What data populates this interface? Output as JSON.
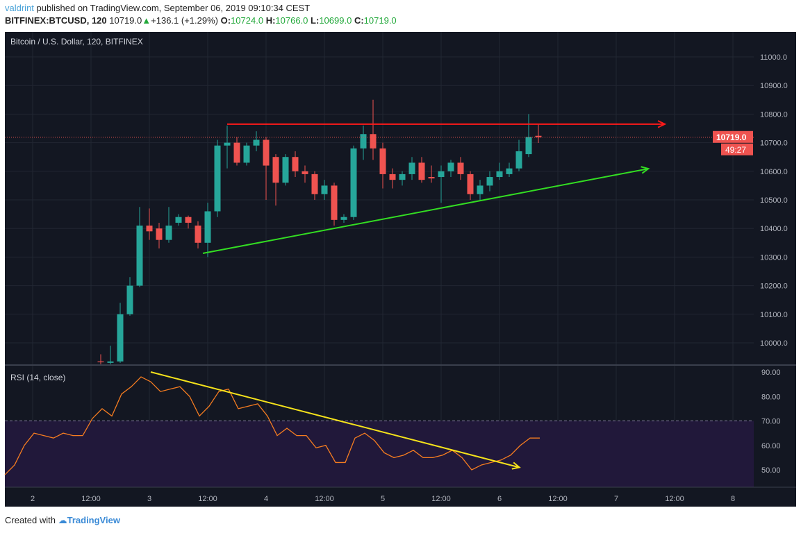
{
  "header": {
    "author": "valdrint",
    "published": "published on TradingView.com, September 06, 2019 09:10:34 CEST",
    "symbol": "BITFINEX:BTCUSD, 120",
    "last": "10719.0",
    "change": "+136.1 (+1.29%)",
    "o_label": "O:",
    "o": "10724.0",
    "h_label": "H:",
    "h": "10766.0",
    "l_label": "L:",
    "l": "10699.0",
    "c_label": "C:",
    "c": "10719.0"
  },
  "footer": {
    "created": "Created with",
    "brand": "TradingView"
  },
  "colors": {
    "bg": "#131722",
    "up": "#26a69a",
    "down": "#ef5350",
    "rsi": "#f57c20",
    "trend_red": "#ff1a1a",
    "trend_green": "#33dd22",
    "trend_yellow": "#f5e21b",
    "band": "#21183a"
  },
  "chart_data": [
    {
      "type": "candlestick",
      "title": "Bitcoin / U.S. Dollar, 120, BITFINEX",
      "ylim": [
        9930,
        11100
      ],
      "yticks": [
        "11000.0",
        "10900.0",
        "10800.0",
        "10700.0",
        "10600.0",
        "10500.0",
        "10400.0",
        "10300.0",
        "10200.0",
        "10100.0",
        "10000.0"
      ],
      "price_label": "10719.0",
      "countdown": "49:27",
      "bars_ohlc": [
        [
          9935,
          9960,
          9925,
          9932
        ],
        [
          9930,
          9990,
          9925,
          9935
        ],
        [
          9935,
          10140,
          9930,
          10100
        ],
        [
          10100,
          10230,
          10095,
          10200
        ],
        [
          10200,
          10475,
          10195,
          10410
        ],
        [
          10410,
          10470,
          10360,
          10390
        ],
        [
          10400,
          10420,
          10330,
          10360
        ],
        [
          10360,
          10475,
          10350,
          10410
        ],
        [
          10420,
          10450,
          10410,
          10440
        ],
        [
          10440,
          10445,
          10400,
          10420
        ],
        [
          10410,
          10425,
          10330,
          10350
        ],
        [
          10350,
          10490,
          10300,
          10460
        ],
        [
          10460,
          10710,
          10440,
          10690
        ],
        [
          10690,
          10760,
          10610,
          10700
        ],
        [
          10700,
          10720,
          10620,
          10630
        ],
        [
          10630,
          10700,
          10620,
          10690
        ],
        [
          10690,
          10740,
          10670,
          10710
        ],
        [
          10710,
          10720,
          10500,
          10620
        ],
        [
          10650,
          10660,
          10480,
          10560
        ],
        [
          10560,
          10660,
          10550,
          10650
        ],
        [
          10650,
          10670,
          10580,
          10600
        ],
        [
          10600,
          10620,
          10560,
          10590
        ],
        [
          10590,
          10600,
          10500,
          10520
        ],
        [
          10520,
          10570,
          10500,
          10550
        ],
        [
          10550,
          10560,
          10410,
          10430
        ],
        [
          10430,
          10450,
          10420,
          10440
        ],
        [
          10440,
          10690,
          10430,
          10680
        ],
        [
          10680,
          10760,
          10640,
          10730
        ],
        [
          10730,
          10850,
          10640,
          10680
        ],
        [
          10680,
          10700,
          10540,
          10590
        ],
        [
          10590,
          10610,
          10540,
          10570
        ],
        [
          10570,
          10600,
          10550,
          10590
        ],
        [
          10590,
          10650,
          10570,
          10630
        ],
        [
          10630,
          10650,
          10560,
          10570
        ],
        [
          10580,
          10620,
          10560,
          10575
        ],
        [
          10580,
          10620,
          10490,
          10600
        ],
        [
          10600,
          10640,
          10580,
          10630
        ],
        [
          10630,
          10650,
          10570,
          10590
        ],
        [
          10590,
          10600,
          10500,
          10520
        ],
        [
          10520,
          10570,
          10500,
          10550
        ],
        [
          10550,
          10600,
          10530,
          10580
        ],
        [
          10580,
          10630,
          10570,
          10600
        ],
        [
          10590,
          10630,
          10580,
          10610
        ],
        [
          10610,
          10710,
          10600,
          10670
        ],
        [
          10660,
          10800,
          10650,
          10720
        ],
        [
          10724,
          10766,
          10699,
          10719
        ]
      ],
      "resistance": {
        "from_bar": 13,
        "to_bar": 58,
        "price": 10765
      },
      "support": {
        "from_bar": 10.5,
        "to_bar": 56.3,
        "from_price": 10313,
        "to_price": 10609
      }
    },
    {
      "type": "line",
      "title": "RSI (14, close)",
      "ylim": [
        43,
        93
      ],
      "yticks": [
        "90.00",
        "80.00",
        "70.00",
        "60.00",
        "50.00"
      ],
      "overbought": 70,
      "values": [
        48,
        52,
        60,
        65,
        64,
        63,
        65,
        64,
        64,
        71,
        75,
        72,
        81,
        84,
        88,
        86,
        82,
        83,
        84,
        80,
        72,
        76,
        82,
        83,
        75,
        76,
        77,
        72,
        64,
        67,
        64,
        64,
        59,
        60,
        53,
        53,
        63,
        65,
        62,
        57,
        55,
        56,
        58,
        55,
        55,
        56,
        58,
        55,
        50,
        52,
        53,
        54,
        56,
        60,
        63,
        63
      ],
      "trend": {
        "from_idx": 15,
        "to_idx": 52.9,
        "from": 90,
        "to": 51
      }
    }
  ],
  "xticks": [
    "2",
    "12:00",
    "3",
    "12:00",
    "4",
    "12:00",
    "5",
    "12:00",
    "6",
    "12:00",
    "7",
    "12:00",
    "8"
  ]
}
